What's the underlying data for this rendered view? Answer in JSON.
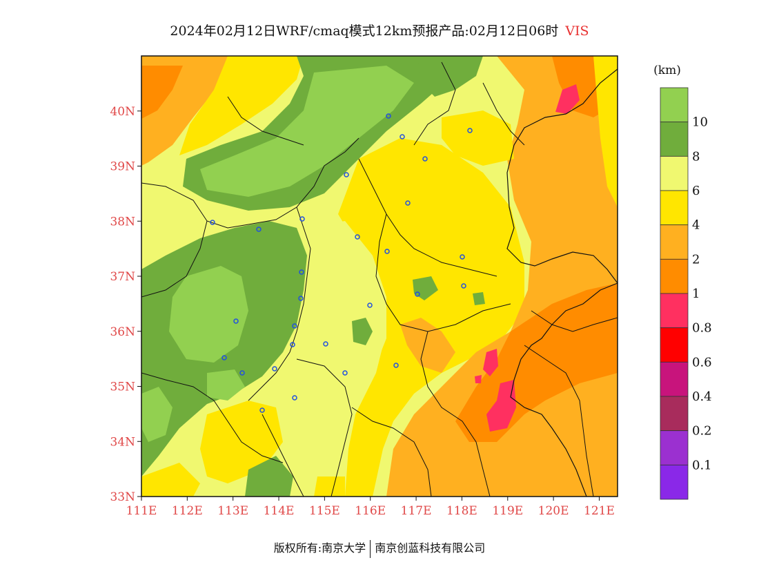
{
  "title": {
    "text": "2024年02月12日WRF/cmaq模式12km预报产品:02月12日06时",
    "var": "VIS"
  },
  "map": {
    "lat_ticks": [
      "40N",
      "39N",
      "38N",
      "37N",
      "36N",
      "35N",
      "34N",
      "33N"
    ],
    "lon_ticks": [
      "111E",
      "112E",
      "113E",
      "114E",
      "115E",
      "116E",
      "117E",
      "118E",
      "119E",
      "120E",
      "121E"
    ],
    "lat_range": [
      33,
      41
    ],
    "lon_range": [
      111,
      121.4
    ]
  },
  "legend": {
    "unit": "(km)",
    "labels": [
      "10",
      "8",
      "6",
      "4",
      "2",
      "1",
      "0.8",
      "0.6",
      "0.4",
      "0.2",
      "0.1"
    ],
    "colors": [
      "#92d050",
      "#70ad3c",
      "#f0f870",
      "#ffe600",
      "#ffb020",
      "#ff8c00",
      "#ff3060",
      "#ff0000",
      "#c8147c",
      "#a82c5c",
      "#9b30d0",
      "#8a28e8"
    ]
  },
  "footer": {
    "left": "版权所有:南京大学",
    "right": "南京创蓝科技有限公司"
  }
}
